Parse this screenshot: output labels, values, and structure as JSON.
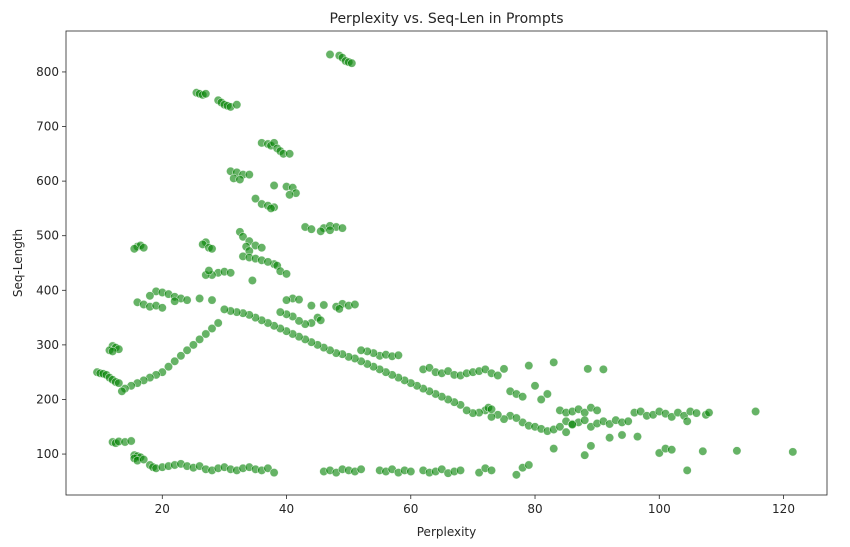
{
  "chart_data": {
    "type": "scatter",
    "title": "Perplexity vs. Seq-Len in Prompts",
    "xlabel": "Perplexity",
    "ylabel": "Seq-Length",
    "xlim": [
      4.5,
      127
    ],
    "ylim": [
      25,
      875
    ],
    "xticks": [
      20,
      40,
      60,
      80,
      100,
      120
    ],
    "yticks": [
      100,
      200,
      300,
      400,
      500,
      600,
      700,
      800
    ],
    "grid": false,
    "legend": "none",
    "marker_color": "#008000",
    "marker_edge": "#ffffff",
    "marker_alpha": 0.6,
    "series": [
      {
        "points": [
          [
            47,
            832
          ],
          [
            48.5,
            830
          ],
          [
            49,
            826
          ],
          [
            49.5,
            820
          ],
          [
            50,
            818
          ],
          [
            50.5,
            816
          ],
          [
            25.5,
            762
          ],
          [
            26,
            760
          ],
          [
            26.5,
            758
          ],
          [
            27,
            760
          ],
          [
            29,
            748
          ],
          [
            29.5,
            744
          ],
          [
            30,
            740
          ],
          [
            30.5,
            738
          ],
          [
            31,
            736
          ],
          [
            32,
            740
          ],
          [
            36,
            670
          ],
          [
            37,
            668
          ],
          [
            37.5,
            665
          ],
          [
            38,
            670
          ],
          [
            38.5,
            660
          ],
          [
            39,
            655
          ],
          [
            39.5,
            650
          ],
          [
            40.5,
            650
          ],
          [
            31,
            618
          ],
          [
            32,
            616
          ],
          [
            33,
            612
          ],
          [
            34,
            612
          ],
          [
            31.5,
            605
          ],
          [
            32.5,
            603
          ],
          [
            38,
            592
          ],
          [
            40,
            590
          ],
          [
            41,
            588
          ],
          [
            41.5,
            578
          ],
          [
            40.5,
            575
          ],
          [
            35,
            568
          ],
          [
            36,
            558
          ],
          [
            37,
            555
          ],
          [
            38,
            552
          ],
          [
            37.5,
            550
          ],
          [
            43,
            516
          ],
          [
            44,
            512
          ],
          [
            46,
            514
          ],
          [
            47,
            518
          ],
          [
            48,
            516
          ],
          [
            49,
            514
          ],
          [
            45.5,
            508
          ],
          [
            47,
            510
          ],
          [
            32.5,
            507
          ],
          [
            33,
            498
          ],
          [
            34,
            490
          ],
          [
            33.5,
            480
          ],
          [
            35,
            482
          ],
          [
            36,
            478
          ],
          [
            34,
            472
          ],
          [
            27,
            488
          ],
          [
            26.5,
            484
          ],
          [
            27.5,
            478
          ],
          [
            28,
            476
          ],
          [
            16,
            480
          ],
          [
            16.5,
            482
          ],
          [
            15.5,
            476
          ],
          [
            17,
            478
          ],
          [
            38,
            448
          ],
          [
            38.5,
            445
          ],
          [
            39,
            435
          ],
          [
            40,
            430
          ],
          [
            29,
            432
          ],
          [
            30,
            434
          ],
          [
            31,
            432
          ],
          [
            28,
            428
          ],
          [
            27,
            428
          ],
          [
            27.5,
            436
          ],
          [
            33,
            462
          ],
          [
            34,
            460
          ],
          [
            35,
            458
          ],
          [
            36,
            455
          ],
          [
            37,
            452
          ],
          [
            34.5,
            418
          ],
          [
            19,
            398
          ],
          [
            20,
            396
          ],
          [
            21,
            393
          ],
          [
            18,
            390
          ],
          [
            22,
            388
          ],
          [
            23,
            385
          ],
          [
            24,
            382
          ],
          [
            26,
            385
          ],
          [
            28,
            382
          ],
          [
            16,
            378
          ],
          [
            17,
            374
          ],
          [
            18,
            370
          ],
          [
            19,
            372
          ],
          [
            20,
            368
          ],
          [
            22,
            380
          ],
          [
            41,
            385
          ],
          [
            42,
            383
          ],
          [
            40,
            382
          ],
          [
            44,
            372
          ],
          [
            46,
            373
          ],
          [
            48,
            370
          ],
          [
            49,
            375
          ],
          [
            50,
            372
          ],
          [
            51,
            374
          ],
          [
            48.5,
            366
          ],
          [
            12,
            298
          ],
          [
            12.5,
            295
          ],
          [
            13,
            292
          ],
          [
            11.5,
            290
          ],
          [
            12,
            288
          ],
          [
            9.5,
            250
          ],
          [
            10,
            248
          ],
          [
            10.5,
            247
          ],
          [
            11,
            245
          ],
          [
            11.5,
            240
          ],
          [
            12,
            236
          ],
          [
            12.5,
            232
          ],
          [
            13,
            230
          ],
          [
            12,
            122
          ],
          [
            12.5,
            120
          ],
          [
            13,
            123
          ],
          [
            14,
            122
          ],
          [
            15,
            124
          ],
          [
            15.5,
            98
          ],
          [
            16,
            96
          ],
          [
            16.5,
            94
          ],
          [
            15.5,
            92
          ],
          [
            16,
            88
          ],
          [
            17,
            90
          ],
          [
            18,
            80
          ],
          [
            18.5,
            76
          ],
          [
            19,
            74
          ],
          [
            20,
            76
          ],
          [
            21,
            78
          ],
          [
            22,
            80
          ],
          [
            23,
            82
          ],
          [
            24,
            78
          ],
          [
            25,
            75
          ],
          [
            26,
            78
          ],
          [
            27,
            72
          ],
          [
            28,
            70
          ],
          [
            29,
            74
          ],
          [
            30,
            76
          ],
          [
            31,
            72
          ],
          [
            32,
            70
          ],
          [
            33,
            74
          ],
          [
            34,
            76
          ],
          [
            35,
            72
          ],
          [
            36,
            70
          ],
          [
            37,
            74
          ],
          [
            38,
            66
          ],
          [
            46,
            68
          ],
          [
            47,
            70
          ],
          [
            48,
            66
          ],
          [
            49,
            72
          ],
          [
            50,
            70
          ],
          [
            51,
            68
          ],
          [
            52,
            72
          ],
          [
            55,
            70
          ],
          [
            56,
            68
          ],
          [
            57,
            72
          ],
          [
            58,
            66
          ],
          [
            59,
            70
          ],
          [
            60,
            68
          ],
          [
            62,
            70
          ],
          [
            63,
            66
          ],
          [
            64,
            68
          ],
          [
            65,
            72
          ],
          [
            66,
            65
          ],
          [
            67,
            68
          ],
          [
            68,
            70
          ],
          [
            71,
            66
          ],
          [
            72,
            74
          ],
          [
            73,
            70
          ],
          [
            77,
            62
          ],
          [
            78,
            75
          ],
          [
            79,
            80
          ],
          [
            55,
            280
          ],
          [
            56,
            282
          ],
          [
            57,
            279
          ],
          [
            58,
            281
          ],
          [
            54,
            285
          ],
          [
            53,
            288
          ],
          [
            52,
            290
          ],
          [
            62,
            255
          ],
          [
            63,
            258
          ],
          [
            64,
            250
          ],
          [
            65,
            248
          ],
          [
            66,
            252
          ],
          [
            67,
            245
          ],
          [
            68,
            244
          ],
          [
            69,
            248
          ],
          [
            70,
            250
          ],
          [
            71,
            252
          ],
          [
            72,
            255
          ],
          [
            73,
            248
          ],
          [
            74,
            244
          ],
          [
            75,
            256
          ],
          [
            76,
            215
          ],
          [
            77,
            210
          ],
          [
            78,
            205
          ],
          [
            79,
            262
          ],
          [
            80,
            225
          ],
          [
            81,
            200
          ],
          [
            82,
            210
          ],
          [
            83,
            268
          ],
          [
            84,
            180
          ],
          [
            85,
            176
          ],
          [
            86,
            178
          ],
          [
            87,
            182
          ],
          [
            88,
            176
          ],
          [
            88.5,
            256
          ],
          [
            89,
            185
          ],
          [
            90,
            180
          ],
          [
            91,
            255
          ],
          [
            85,
            160
          ],
          [
            86,
            155
          ],
          [
            87,
            158
          ],
          [
            88,
            162
          ],
          [
            89,
            150
          ],
          [
            90,
            156
          ],
          [
            91,
            160
          ],
          [
            92,
            155
          ],
          [
            93,
            162
          ],
          [
            94,
            158
          ],
          [
            95,
            160
          ],
          [
            96,
            176
          ],
          [
            97,
            178
          ],
          [
            98,
            170
          ],
          [
            99,
            172
          ],
          [
            100,
            178
          ],
          [
            101,
            174
          ],
          [
            102,
            168
          ],
          [
            103,
            176
          ],
          [
            104,
            170
          ],
          [
            104.5,
            160
          ],
          [
            100,
            102
          ],
          [
            101,
            110
          ],
          [
            102,
            108
          ],
          [
            96.5,
            132
          ],
          [
            94,
            135
          ],
          [
            92,
            130
          ],
          [
            88,
            98
          ],
          [
            89,
            115
          ],
          [
            83,
            110
          ],
          [
            78,
            158
          ],
          [
            79,
            152
          ],
          [
            80,
            150
          ],
          [
            81,
            146
          ],
          [
            82,
            142
          ],
          [
            83,
            145
          ],
          [
            84,
            150
          ],
          [
            85,
            140
          ],
          [
            86,
            154
          ],
          [
            76,
            170
          ],
          [
            77,
            166
          ],
          [
            75,
            164
          ],
          [
            74,
            172
          ],
          [
            73,
            168
          ],
          [
            105,
            178
          ],
          [
            106,
            175
          ],
          [
            107.5,
            172
          ],
          [
            108,
            176
          ],
          [
            115.5,
            178
          ],
          [
            107,
            105
          ],
          [
            112.5,
            106
          ],
          [
            121.5,
            104
          ],
          [
            104.5,
            70
          ],
          [
            72,
            180
          ],
          [
            72.5,
            185
          ],
          [
            73,
            182
          ],
          [
            71,
            176
          ],
          [
            70,
            175
          ],
          [
            69,
            180
          ],
          [
            68,
            190
          ],
          [
            67,
            195
          ],
          [
            66,
            200
          ],
          [
            65,
            205
          ],
          [
            64,
            210
          ],
          [
            63,
            215
          ],
          [
            62,
            220
          ],
          [
            61,
            225
          ],
          [
            60,
            230
          ],
          [
            59,
            235
          ],
          [
            58,
            240
          ],
          [
            57,
            245
          ],
          [
            56,
            250
          ],
          [
            55,
            255
          ],
          [
            54,
            260
          ],
          [
            53,
            265
          ],
          [
            52,
            270
          ],
          [
            51,
            275
          ],
          [
            50,
            278
          ],
          [
            49,
            283
          ],
          [
            48,
            285
          ],
          [
            47,
            290
          ],
          [
            46,
            295
          ],
          [
            45,
            300
          ],
          [
            44,
            305
          ],
          [
            43,
            310
          ],
          [
            42,
            315
          ],
          [
            41,
            320
          ],
          [
            40,
            325
          ],
          [
            39,
            330
          ],
          [
            38,
            335
          ],
          [
            37,
            340
          ],
          [
            36,
            345
          ],
          [
            35,
            350
          ],
          [
            34,
            355
          ],
          [
            33,
            358
          ],
          [
            32,
            360
          ],
          [
            31,
            362
          ],
          [
            30,
            365
          ],
          [
            45,
            350
          ],
          [
            45.5,
            345
          ],
          [
            44,
            340
          ],
          [
            43,
            338
          ],
          [
            42,
            344
          ],
          [
            41,
            352
          ],
          [
            40,
            356
          ],
          [
            39,
            360
          ],
          [
            29,
            340
          ],
          [
            28,
            330
          ],
          [
            27,
            320
          ],
          [
            26,
            310
          ],
          [
            25,
            300
          ],
          [
            24,
            290
          ],
          [
            23,
            280
          ],
          [
            22,
            270
          ],
          [
            21,
            260
          ],
          [
            20,
            250
          ],
          [
            19,
            245
          ],
          [
            18,
            240
          ],
          [
            17,
            235
          ],
          [
            16,
            230
          ],
          [
            15,
            225
          ],
          [
            14,
            220
          ],
          [
            13.5,
            215
          ]
        ]
      }
    ]
  }
}
